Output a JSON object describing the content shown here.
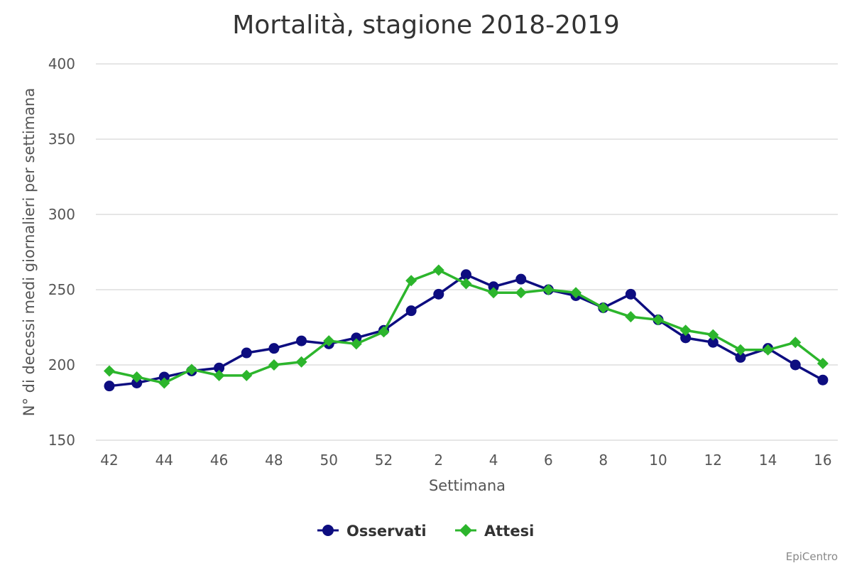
{
  "chart_data": {
    "type": "line",
    "title": "Mortalità, stagione 2018-2019",
    "xlabel": "Settimana",
    "ylabel": "N° di decessi medi giornalieri per settimana",
    "ylim": [
      150,
      400
    ],
    "yticks": [
      "150",
      "200",
      "250",
      "300",
      "350",
      "400"
    ],
    "categories": [
      "42",
      "43",
      "44",
      "45",
      "46",
      "47",
      "48",
      "49",
      "50",
      "51",
      "52",
      "1",
      "2",
      "3",
      "4",
      "5",
      "6",
      "7",
      "8",
      "9",
      "10",
      "11",
      "12",
      "13",
      "14",
      "15",
      "16"
    ],
    "xtick_labels": [
      "42",
      "44",
      "46",
      "48",
      "50",
      "52",
      "2",
      "4",
      "6",
      "8",
      "10",
      "12",
      "14",
      "16"
    ],
    "grid": true,
    "legend_position": "bottom-center",
    "credit": "EpiCentro",
    "series": [
      {
        "name": "Osservati",
        "color": "#0d0d80",
        "marker": "circle",
        "values": [
          186,
          188,
          192,
          196,
          198,
          208,
          211,
          216,
          214,
          218,
          223,
          236,
          247,
          260,
          252,
          257,
          250,
          246,
          238,
          247,
          230,
          218,
          215,
          205,
          211,
          200,
          190
        ]
      },
      {
        "name": "Attesi",
        "color": "#2cb52c",
        "marker": "diamond",
        "values": [
          196,
          192,
          188,
          197,
          193,
          193,
          200,
          202,
          216,
          214,
          222,
          256,
          263,
          254,
          248,
          248,
          250,
          248,
          238,
          232,
          230,
          223,
          220,
          210,
          210,
          215,
          201
        ]
      }
    ]
  }
}
